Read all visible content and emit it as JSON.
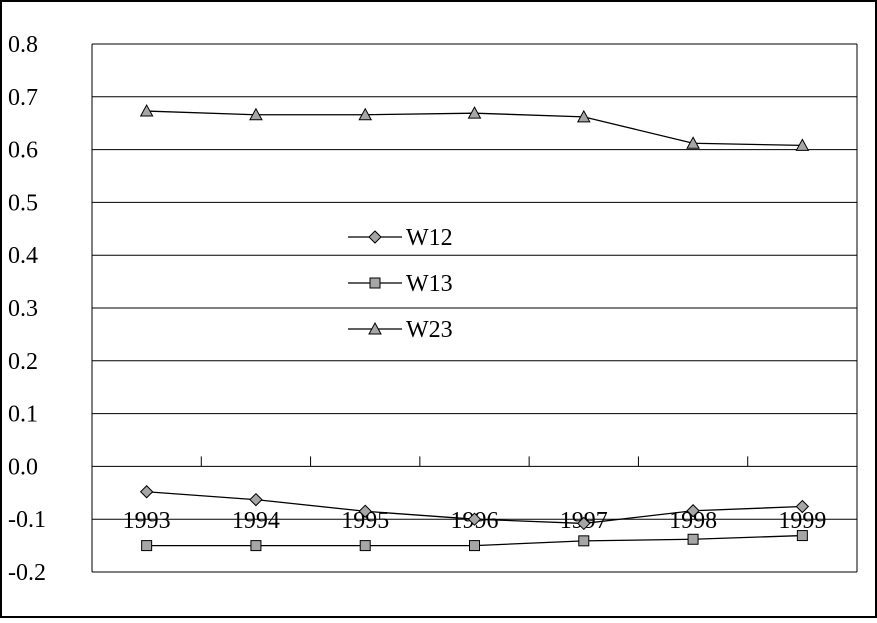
{
  "chart_data": {
    "type": "line",
    "title": "",
    "xlabel": "",
    "ylabel": "",
    "categories": [
      "1993",
      "1994",
      "1995",
      "1996",
      "1997",
      "1998",
      "1999"
    ],
    "ylim": [
      -0.2,
      0.8
    ],
    "yticks": [
      "0.8",
      "0.7",
      "0.6",
      "0.5",
      "0.4",
      "0.3",
      "0.2",
      "0.1",
      "0.0",
      "-0.1",
      "-0.2"
    ],
    "grid": true,
    "legend_position": "center-left",
    "series": [
      {
        "name": "W12",
        "marker": "diamond",
        "values": [
          -0.048,
          -0.063,
          -0.085,
          -0.1,
          -0.108,
          -0.084,
          -0.076
        ]
      },
      {
        "name": "W13",
        "marker": "square",
        "values": [
          -0.15,
          -0.15,
          -0.15,
          -0.15,
          -0.141,
          -0.138,
          -0.131
        ]
      },
      {
        "name": "W23",
        "marker": "triangle",
        "values": [
          0.673,
          0.666,
          0.666,
          0.669,
          0.662,
          0.612,
          0.608
        ]
      }
    ],
    "colors": {
      "line": "#000000",
      "marker_fill": "#a6a6a6",
      "grid": "#000000"
    }
  }
}
